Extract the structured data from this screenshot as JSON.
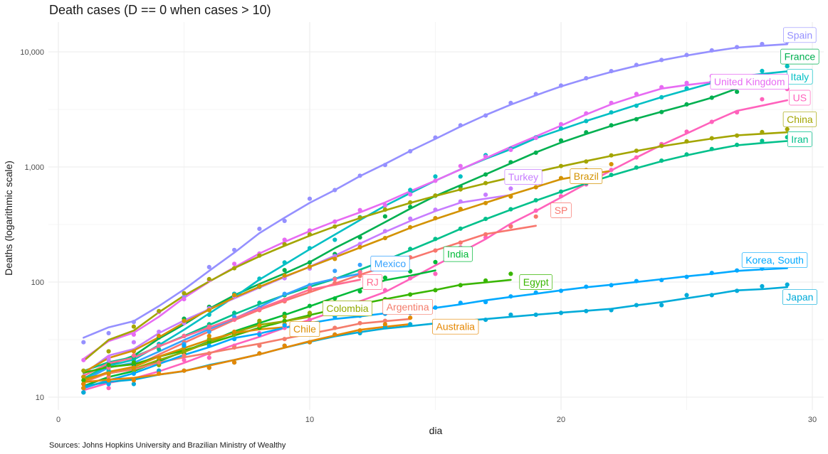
{
  "chart_data": {
    "type": "scatter",
    "title": "Death cases (D == 0 when cases > 10)",
    "xlabel": "dia",
    "ylabel": "Deaths (logarithmic scale)",
    "caption": "Sources: Johns Hopkins University and Brazilian Ministry of Wealthy",
    "xlim": [
      0,
      30
    ],
    "ylim": [
      10,
      12500
    ],
    "y_scale": "log10",
    "x_ticks": [
      0,
      10,
      20,
      30
    ],
    "y_ticks": [
      10,
      100,
      1000,
      10000
    ],
    "y_tick_labels": [
      "10",
      "100",
      "1,000",
      "10,000"
    ],
    "grid": true,
    "legend": "none (direct labels)",
    "series": [
      {
        "name": "Spain",
        "color": "#9590FF",
        "x": [
          1,
          2,
          3,
          4,
          5,
          6,
          7,
          8,
          9,
          10,
          11,
          12,
          13,
          14,
          15,
          16,
          17,
          18,
          19,
          20,
          21,
          22,
          23,
          24,
          25,
          26,
          27,
          28,
          29
        ],
        "y": [
          30,
          36,
          45,
          55,
          75,
          135,
          190,
          290,
          340,
          530,
          630,
          840,
          1040,
          1370,
          1800,
          2300,
          2800,
          3600,
          4300,
          5100,
          5900,
          6800,
          7700,
          8500,
          9400,
          10300,
          11000,
          11700,
          12300
        ]
      },
      {
        "name": "France",
        "color": "#00B050",
        "x": [
          1,
          2,
          3,
          4,
          5,
          6,
          7,
          8,
          9,
          10,
          11,
          12,
          13,
          14,
          15,
          16,
          17,
          18,
          19,
          20,
          21,
          22,
          23,
          24,
          25,
          26,
          27,
          28,
          29
        ],
        "y": [
          11,
          19,
          19,
          33,
          48,
          61,
          79,
          91,
          127,
          148,
          175,
          244,
          372,
          450,
          562,
          674,
          860,
          1100,
          1330,
          1700,
          2000,
          2300,
          2600,
          3000,
          3500,
          4000,
          4500,
          5400,
          7500
        ]
      },
      {
        "name": "Italy",
        "color": "#00BFC4",
        "x": [
          1,
          2,
          3,
          4,
          5,
          6,
          7,
          8,
          9,
          10,
          11,
          12,
          13,
          14,
          15,
          16,
          17,
          18,
          19,
          20,
          21,
          22,
          23,
          24,
          25,
          26,
          27,
          28,
          29
        ],
        "y": [
          12,
          17,
          21,
          29,
          34,
          52,
          79,
          107,
          148,
          197,
          233,
          366,
          463,
          631,
          827,
          827,
          1266,
          1441,
          1809,
          2158,
          2503,
          2978,
          3405,
          4032,
          4825,
          5476,
          6077,
          6820,
          7503
        ]
      },
      {
        "name": "United Kingdom",
        "color": "#E76BF3",
        "x": [
          1,
          2,
          3,
          4,
          5,
          6,
          7,
          8,
          9,
          10,
          11,
          12,
          13,
          14,
          15,
          16,
          17,
          18,
          19,
          20,
          21,
          22,
          23,
          24,
          25,
          26
        ],
        "y": [
          21,
          22,
          35,
          55,
          71,
          104,
          144,
          177,
          233,
          281,
          335,
          422,
          465,
          578,
          759,
          1019,
          1228,
          1408,
          1789,
          2352,
          2921,
          3605,
          4313,
          4934,
          5373,
          6159
        ]
      },
      {
        "name": "US",
        "color": "#FF62BC",
        "x": [
          1,
          2,
          3,
          4,
          5,
          6,
          7,
          8,
          9,
          10,
          11,
          12,
          13,
          14,
          15,
          16,
          17,
          18,
          19,
          20,
          21,
          22,
          23,
          24,
          25,
          26,
          27,
          28,
          29
        ],
        "y": [
          11,
          12,
          14,
          17,
          21,
          22,
          28,
          36,
          40,
          47,
          54,
          63,
          85,
          108,
          118,
          200,
          244,
          307,
          417,
          557,
          706,
          942,
          1209,
          1581,
          2026,
          2467,
          2978,
          3873,
          4757
        ]
      },
      {
        "name": "China",
        "color": "#A3A500",
        "x": [
          1,
          2,
          3,
          4,
          5,
          6,
          7,
          8,
          9,
          10,
          11,
          12,
          13,
          14,
          15,
          16,
          17,
          18,
          19,
          20,
          21,
          22,
          23,
          24,
          25,
          26,
          27,
          28,
          29
        ],
        "y": [
          17,
          25,
          41,
          56,
          80,
          106,
          132,
          170,
          213,
          259,
          304,
          362,
          426,
          492,
          565,
          638,
          724,
          813,
          910,
          1018,
          1115,
          1261,
          1383,
          1526,
          1669,
          1775,
          1873,
          2009,
          2126
        ]
      },
      {
        "name": "Iran",
        "color": "#00C08B",
        "x": [
          1,
          2,
          3,
          4,
          5,
          6,
          7,
          8,
          9,
          10,
          11,
          12,
          13,
          14,
          15,
          16,
          17,
          18,
          19,
          20,
          21,
          22,
          23,
          24,
          25,
          26,
          27,
          28,
          29
        ],
        "y": [
          15,
          19,
          22,
          26,
          34,
          43,
          54,
          66,
          77,
          92,
          107,
          124,
          145,
          194,
          237,
          291,
          354,
          429,
          514,
          611,
          724,
          853,
          988,
          1135,
          1284,
          1433,
          1556,
          1685,
          1812
        ]
      },
      {
        "name": "Turkey",
        "color": "#C77CFF",
        "x": [
          1,
          2,
          3,
          4,
          5,
          6,
          7,
          8,
          9,
          10,
          11,
          12,
          13,
          14,
          15,
          16,
          17,
          18
        ],
        "y": [
          12,
          21,
          30,
          37,
          44,
          59,
          75,
          92,
          108,
          131,
          168,
          214,
          277,
          356,
          425,
          501,
          574,
          649
        ]
      },
      {
        "name": "Brazil",
        "color": "#D39200",
        "x": [
          1,
          2,
          3,
          4,
          5,
          6,
          7,
          8,
          9,
          10,
          11,
          12,
          13,
          14,
          15,
          16,
          17,
          18,
          19,
          20,
          21,
          22
        ],
        "y": [
          15,
          18,
          25,
          34,
          46,
          57,
          77,
          92,
          114,
          136,
          159,
          201,
          241,
          299,
          359,
          432,
          486,
          553,
          667,
          800,
          941,
          1057
        ]
      },
      {
        "name": "SP",
        "color": "#F8766D",
        "x": [
          1,
          2,
          3,
          4,
          5,
          6,
          7,
          8,
          9,
          10,
          11,
          12,
          13,
          14,
          15,
          16,
          17,
          18,
          19
        ],
        "y": [
          12,
          15,
          18,
          22,
          30,
          40,
          48,
          57,
          68,
          84,
          98,
          113,
          136,
          164,
          188,
          220,
          260,
          304,
          371
        ]
      },
      {
        "name": "India",
        "color": "#00BA38",
        "x": [
          1,
          2,
          3,
          4,
          5,
          6,
          7,
          8,
          9,
          10,
          11,
          12,
          13,
          14,
          15
        ],
        "y": [
          12,
          13,
          17,
          19,
          27,
          32,
          35,
          45,
          53,
          62,
          72,
          83,
          109,
          124,
          149
        ]
      },
      {
        "name": "Mexico",
        "color": "#35A2FF",
        "x": [
          1,
          2,
          3,
          4,
          5,
          6,
          7,
          8,
          9,
          10,
          11,
          12
        ],
        "y": [
          12,
          16,
          20,
          28,
          29,
          37,
          50,
          60,
          79,
          94,
          125,
          141
        ]
      },
      {
        "name": "RJ",
        "color": "#FF6C91",
        "x": [
          1,
          2,
          3,
          4,
          5,
          6,
          7,
          8,
          9,
          10,
          11,
          12
        ],
        "y": [
          13,
          18,
          23,
          28,
          34,
          41,
          47,
          58,
          70,
          89,
          106,
          122
        ]
      },
      {
        "name": "Egypt",
        "color": "#39B600",
        "x": [
          1,
          2,
          3,
          4,
          5,
          6,
          7,
          8,
          9,
          10,
          11,
          12,
          13,
          14,
          15,
          16,
          17,
          18
        ],
        "y": [
          14,
          19,
          20,
          21,
          24,
          30,
          36,
          40,
          46,
          52,
          58,
          66,
          71,
          78,
          85,
          94,
          103,
          118
        ]
      },
      {
        "name": "Colombia",
        "color": "#93AA00",
        "x": [
          1,
          2,
          3,
          4,
          5,
          6,
          7,
          8,
          9,
          10
        ],
        "y": [
          13,
          16,
          17,
          19,
          25,
          32,
          35,
          46,
          50,
          54
        ]
      },
      {
        "name": "Argentina",
        "color": "#F47C6B",
        "x": [
          1,
          2,
          3,
          4,
          5,
          6,
          7,
          8,
          9,
          10,
          11,
          12,
          13,
          14
        ],
        "y": [
          12,
          16,
          18,
          20,
          23,
          24,
          27,
          28,
          32,
          36,
          40,
          44,
          46,
          54
        ]
      },
      {
        "name": "Chile",
        "color": "#DB8E00",
        "x": [
          1,
          2,
          3,
          4,
          5,
          6,
          7,
          8,
          9
        ],
        "y": [
          12,
          16,
          18,
          22,
          27,
          34,
          37,
          42,
          43
        ]
      },
      {
        "name": "Korea, South",
        "color": "#00A9FF",
        "x": [
          1,
          2,
          3,
          4,
          5,
          6,
          7,
          8,
          9,
          10,
          11,
          12,
          13,
          14,
          15,
          16,
          17,
          18,
          19,
          20,
          21,
          22,
          23,
          24,
          25,
          26,
          27,
          28,
          29
        ],
        "y": [
          11,
          13,
          16,
          17,
          28,
          28,
          32,
          35,
          42,
          44,
          50,
          51,
          53,
          54,
          60,
          66,
          67,
          75,
          81,
          84,
          91,
          94,
          102,
          104,
          111,
          120,
          126,
          131,
          139
        ]
      },
      {
        "name": "Japan",
        "color": "#00ABD9",
        "x": [
          1,
          2,
          3,
          4,
          5,
          6,
          7,
          8,
          9,
          10,
          11,
          12,
          13,
          14,
          15,
          16,
          17,
          18,
          19,
          20,
          21,
          22,
          23,
          24,
          25,
          26,
          27,
          28,
          29
        ],
        "y": [
          11,
          14,
          13,
          17,
          17,
          18,
          20,
          24,
          28,
          30,
          35,
          36,
          41,
          43,
          43,
          45,
          47,
          52,
          52,
          54,
          56,
          57,
          63,
          63,
          77,
          77,
          84,
          92,
          95
        ]
      },
      {
        "name": "Australia",
        "color": "#E58700",
        "x": [
          1,
          2,
          3,
          4,
          5,
          6,
          7,
          8,
          9,
          10,
          11,
          12,
          13,
          14
        ],
        "y": [
          13,
          14,
          14,
          16,
          17,
          18,
          20,
          24,
          28,
          30,
          35,
          38,
          43,
          49
        ]
      }
    ],
    "labels": [
      {
        "name": "Spain",
        "x": 29.5,
        "y": 14000
      },
      {
        "name": "France",
        "x": 29.5,
        "y": 9100
      },
      {
        "name": "Italy",
        "x": 29.5,
        "y": 6100
      },
      {
        "name": "United Kingdom",
        "x": 27.5,
        "y": 5500
      },
      {
        "name": "US",
        "x": 29.5,
        "y": 4000
      },
      {
        "name": "China",
        "x": 29.5,
        "y": 2600
      },
      {
        "name": "Iran",
        "x": 29.5,
        "y": 1740
      },
      {
        "name": "Turkey",
        "x": 18.5,
        "y": 820
      },
      {
        "name": "Brazil",
        "x": 21.0,
        "y": 830
      },
      {
        "name": "SP",
        "x": 20.0,
        "y": 420
      },
      {
        "name": "India",
        "x": 15.9,
        "y": 175
      },
      {
        "name": "Mexico",
        "x": 13.2,
        "y": 145
      },
      {
        "name": "RJ",
        "x": 12.5,
        "y": 100
      },
      {
        "name": "Egypt",
        "x": 19.0,
        "y": 100
      },
      {
        "name": "Colombia",
        "x": 11.5,
        "y": 59
      },
      {
        "name": "Argentina",
        "x": 13.9,
        "y": 61
      },
      {
        "name": "Chile",
        "x": 9.8,
        "y": 39
      },
      {
        "name": "Korea, South",
        "x": 28.5,
        "y": 155
      },
      {
        "name": "Japan",
        "x": 29.5,
        "y": 74
      },
      {
        "name": "Australia",
        "x": 15.8,
        "y": 41
      }
    ]
  }
}
